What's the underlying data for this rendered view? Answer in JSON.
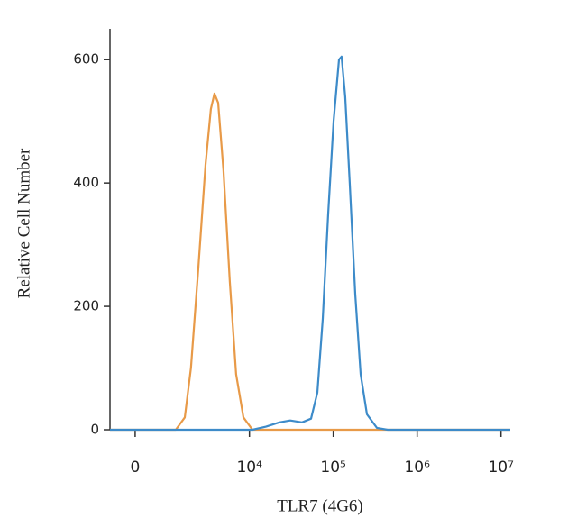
{
  "chart_data": {
    "type": "line",
    "xlabel": "TLR7 (4G6)",
    "ylabel": "Relative Cell Number",
    "xscale": "asinh",
    "xlim": [
      -650,
      12900000
    ],
    "ylim": [
      0,
      650
    ],
    "xticks": [
      0,
      {
        "value": 10000,
        "label": "10⁴"
      },
      {
        "value": 100000,
        "label": "10⁵"
      },
      {
        "value": 1000000,
        "label": "10⁶"
      },
      {
        "value": 10000000,
        "label": "10⁷"
      }
    ],
    "yticks": [
      0,
      200,
      400,
      600
    ],
    "series": [
      {
        "color": "#e89a48",
        "x": [
          -650,
          1185,
          1590,
          1920,
          2380,
          2940,
          3420,
          3790,
          4200,
          4880,
          5820,
          6930,
          8470,
          10850,
          12900000
        ],
        "values": [
          0,
          0,
          20,
          100,
          260,
          430,
          520,
          545,
          530,
          420,
          240,
          90,
          20,
          0,
          0
        ]
      },
      {
        "color": "#3d8bc9",
        "x": [
          -650,
          10850,
          15750,
          22800,
          30700,
          42400,
          54300,
          64600,
          74900,
          86900,
          100800,
          117000,
          125800,
          138900,
          157300,
          182600,
          211900,
          252000,
          331100,
          445000,
          12900000
        ],
        "values": [
          0,
          0,
          5,
          12,
          15,
          12,
          18,
          60,
          180,
          350,
          500,
          600,
          605,
          540,
          400,
          220,
          90,
          25,
          3,
          0,
          0
        ]
      }
    ]
  }
}
